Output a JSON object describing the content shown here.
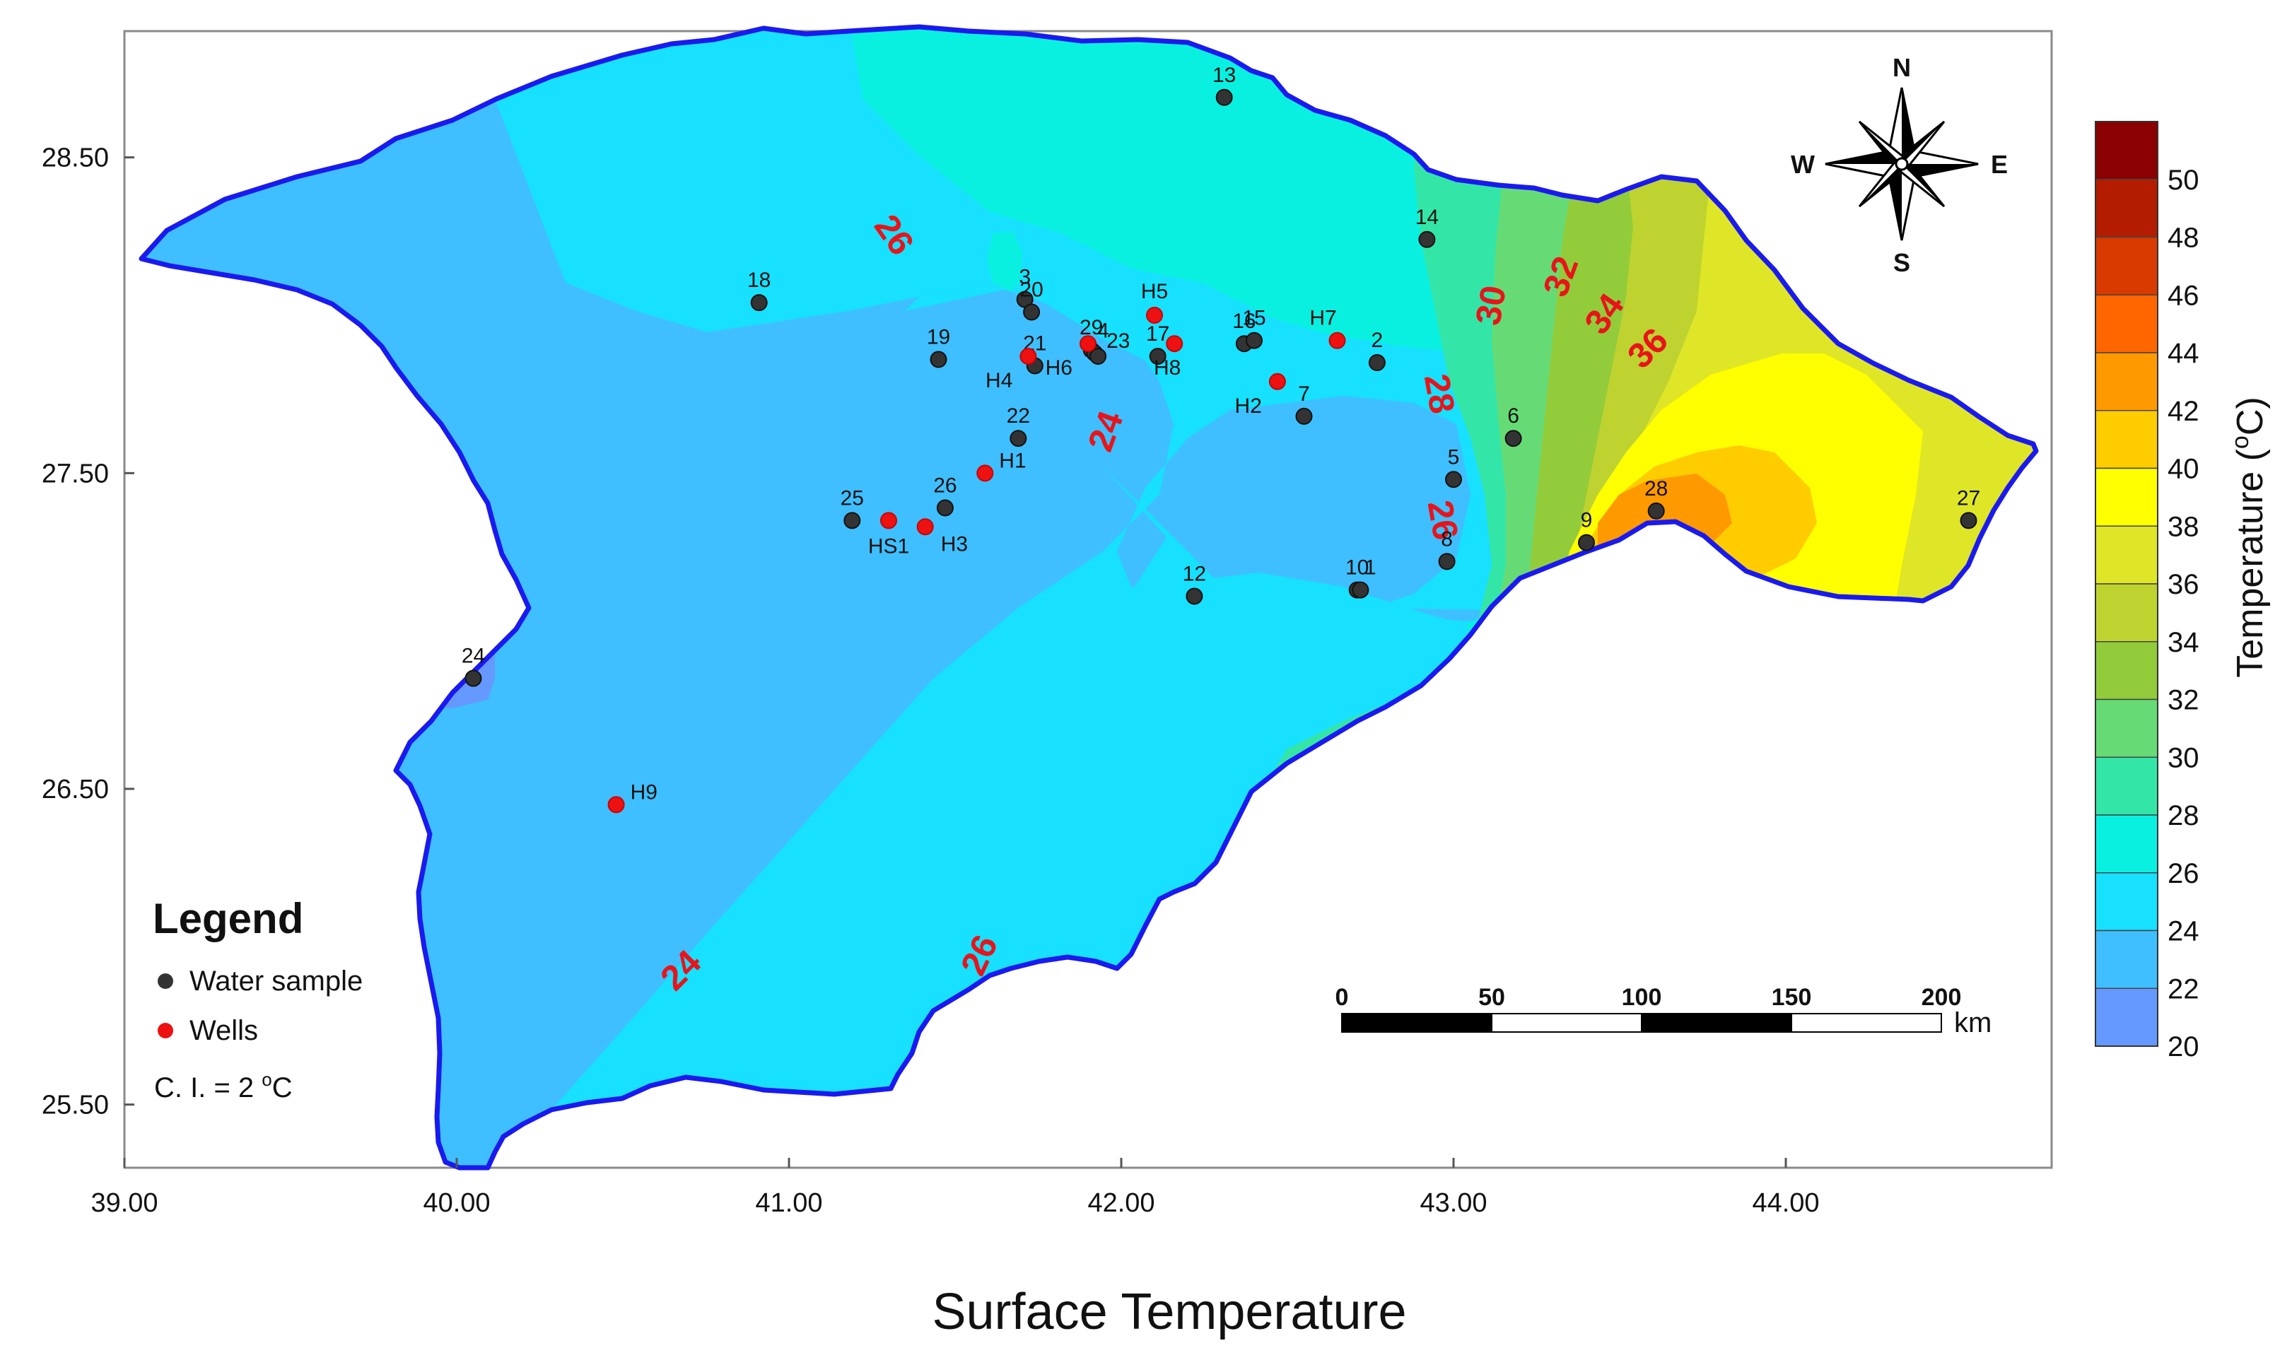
{
  "figure": {
    "title": "Surface Temperature",
    "colorbar_label": "Temperature (°C)",
    "colorbar_label_parts": {
      "prefix": "Temperature (",
      "sup": "o",
      "suffix": "C)"
    }
  },
  "axes": {
    "x_ticks": [
      "39.00",
      "40.00",
      "41.00",
      "42.00",
      "43.00",
      "44.00"
    ],
    "y_ticks": [
      "28.50",
      "27.50",
      "26.50",
      "25.50"
    ],
    "xlim": [
      39.0,
      44.8
    ],
    "ylim": [
      25.3,
      28.9
    ]
  },
  "colorbar": {
    "ticks": [
      "50",
      "48",
      "46",
      "44",
      "42",
      "40",
      "38",
      "36",
      "34",
      "32",
      "30",
      "28",
      "26",
      "24",
      "22",
      "20"
    ],
    "bands": [
      {
        "from": 50,
        "to": 52,
        "color": "#8b0000"
      },
      {
        "from": 48,
        "to": 50,
        "color": "#b31c00"
      },
      {
        "from": 46,
        "to": 48,
        "color": "#d83a00"
      },
      {
        "from": 44,
        "to": 46,
        "color": "#ff6600"
      },
      {
        "from": 42,
        "to": 44,
        "color": "#ff9900"
      },
      {
        "from": 40,
        "to": 42,
        "color": "#ffcc00"
      },
      {
        "from": 38,
        "to": 40,
        "color": "#ffff00"
      },
      {
        "from": 36,
        "to": 38,
        "color": "#dfe627"
      },
      {
        "from": 34,
        "to": 36,
        "color": "#bfd330"
      },
      {
        "from": 32,
        "to": 34,
        "color": "#93cc3a"
      },
      {
        "from": 30,
        "to": 32,
        "color": "#66db75"
      },
      {
        "from": 28,
        "to": 30,
        "color": "#33e6a8"
      },
      {
        "from": 26,
        "to": 28,
        "color": "#0af0e0"
      },
      {
        "from": 24,
        "to": 26,
        "color": "#18e0ff"
      },
      {
        "from": 22,
        "to": 24,
        "color": "#3fbfff"
      },
      {
        "from": 20,
        "to": 22,
        "color": "#6699ff"
      }
    ]
  },
  "compass": {
    "n": "N",
    "s": "S",
    "e": "E",
    "w": "W"
  },
  "legend": {
    "title": "Legend",
    "water_sample": "Water sample",
    "wells": "Wells",
    "ci_prefix": "C. I. = 2 ",
    "ci_sup": "o",
    "ci_suffix": "C",
    "water_color": "#333333",
    "well_color": "#ee1111"
  },
  "scale_bar": {
    "labels": [
      "0",
      "50",
      "100",
      "150",
      "200"
    ],
    "unit": "km"
  },
  "contour_labels": [
    {
      "text": "26",
      "lon": 41.31,
      "lat": 28.25,
      "angle": 55
    },
    {
      "text": "24",
      "lon": 41.96,
      "lat": 27.63,
      "angle": -70
    },
    {
      "text": "28",
      "lon": 42.95,
      "lat": 27.75,
      "angle": 80
    },
    {
      "text": "30",
      "lon": 43.12,
      "lat": 28.03,
      "angle": -80
    },
    {
      "text": "32",
      "lon": 43.33,
      "lat": 28.12,
      "angle": -70
    },
    {
      "text": "34",
      "lon": 43.46,
      "lat": 28.0,
      "angle": -55
    },
    {
      "text": "36",
      "lon": 43.59,
      "lat": 27.89,
      "angle": -45
    },
    {
      "text": "26",
      "lon": 42.96,
      "lat": 27.35,
      "angle": 80
    },
    {
      "text": "24",
      "lon": 40.68,
      "lat": 25.92,
      "angle": -45
    },
    {
      "text": "26",
      "lon": 41.58,
      "lat": 25.97,
      "angle": -65
    }
  ],
  "sites": [
    {
      "label": "13",
      "type": "water",
      "lon": 42.31,
      "lat": 28.69
    },
    {
      "label": "14",
      "type": "water",
      "lon": 42.92,
      "lat": 28.24
    },
    {
      "label": "18",
      "type": "water",
      "lon": 40.91,
      "lat": 28.04
    },
    {
      "label": "3",
      "type": "water",
      "lon": 41.71,
      "lat": 28.05
    },
    {
      "label": "20",
      "type": "water",
      "lon": 41.73,
      "lat": 28.01
    },
    {
      "label": "19",
      "type": "water",
      "lon": 41.45,
      "lat": 27.86
    },
    {
      "label": "21",
      "type": "water",
      "lon": 41.74,
      "lat": 27.84
    },
    {
      "label": "29",
      "type": "water",
      "lon": 41.91,
      "lat": 27.89
    },
    {
      "label": "4",
      "type": "water",
      "lon": 41.92,
      "lat": 27.88
    },
    {
      "label": "23",
      "type": "water",
      "lon": 41.93,
      "lat": 27.87
    },
    {
      "label": "17",
      "type": "water",
      "lon": 42.11,
      "lat": 27.87
    },
    {
      "label": "16",
      "type": "water",
      "lon": 42.37,
      "lat": 27.91
    },
    {
      "label": "15",
      "type": "water",
      "lon": 42.4,
      "lat": 27.92
    },
    {
      "label": "2",
      "type": "water",
      "lon": 42.77,
      "lat": 27.85
    },
    {
      "label": "7",
      "type": "water",
      "lon": 42.55,
      "lat": 27.68
    },
    {
      "label": "22",
      "type": "water",
      "lon": 41.69,
      "lat": 27.61
    },
    {
      "label": "6",
      "type": "water",
      "lon": 43.18,
      "lat": 27.61
    },
    {
      "label": "5",
      "type": "water",
      "lon": 43.0,
      "lat": 27.48
    },
    {
      "label": "26",
      "type": "water",
      "lon": 41.47,
      "lat": 27.39
    },
    {
      "label": "25",
      "type": "water",
      "lon": 41.19,
      "lat": 27.35
    },
    {
      "label": "28",
      "type": "water",
      "lon": 43.61,
      "lat": 27.38
    },
    {
      "label": "27",
      "type": "water",
      "lon": 44.55,
      "lat": 27.35
    },
    {
      "label": "9",
      "type": "water",
      "lon": 43.4,
      "lat": 27.28
    },
    {
      "label": "8",
      "type": "water",
      "lon": 42.98,
      "lat": 27.22
    },
    {
      "label": "10",
      "type": "water",
      "lon": 42.71,
      "lat": 27.13
    },
    {
      "label": "1",
      "type": "water",
      "lon": 42.72,
      "lat": 27.13
    },
    {
      "label": "12",
      "type": "water",
      "lon": 42.22,
      "lat": 27.11
    },
    {
      "label": "24",
      "type": "water",
      "lon": 40.05,
      "lat": 26.85
    },
    {
      "label": "H5",
      "type": "well",
      "lon": 42.1,
      "lat": 28.0
    },
    {
      "label": "H7",
      "type": "well",
      "lon": 42.65,
      "lat": 27.92
    },
    {
      "label": "H8",
      "type": "well",
      "lon": 42.16,
      "lat": 27.91
    },
    {
      "label": "H6",
      "type": "well",
      "lon": 41.9,
      "lat": 27.91
    },
    {
      "label": "H4",
      "type": "well",
      "lon": 41.72,
      "lat": 27.87
    },
    {
      "label": "H2",
      "type": "well",
      "lon": 42.47,
      "lat": 27.79
    },
    {
      "label": "H1",
      "type": "well",
      "lon": 41.59,
      "lat": 27.5
    },
    {
      "label": "HS1",
      "type": "well",
      "lon": 41.3,
      "lat": 27.35
    },
    {
      "label": "H3",
      "type": "well",
      "lon": 41.41,
      "lat": 27.33
    },
    {
      "label": "H9",
      "type": "well",
      "lon": 40.48,
      "lat": 26.45
    }
  ]
}
